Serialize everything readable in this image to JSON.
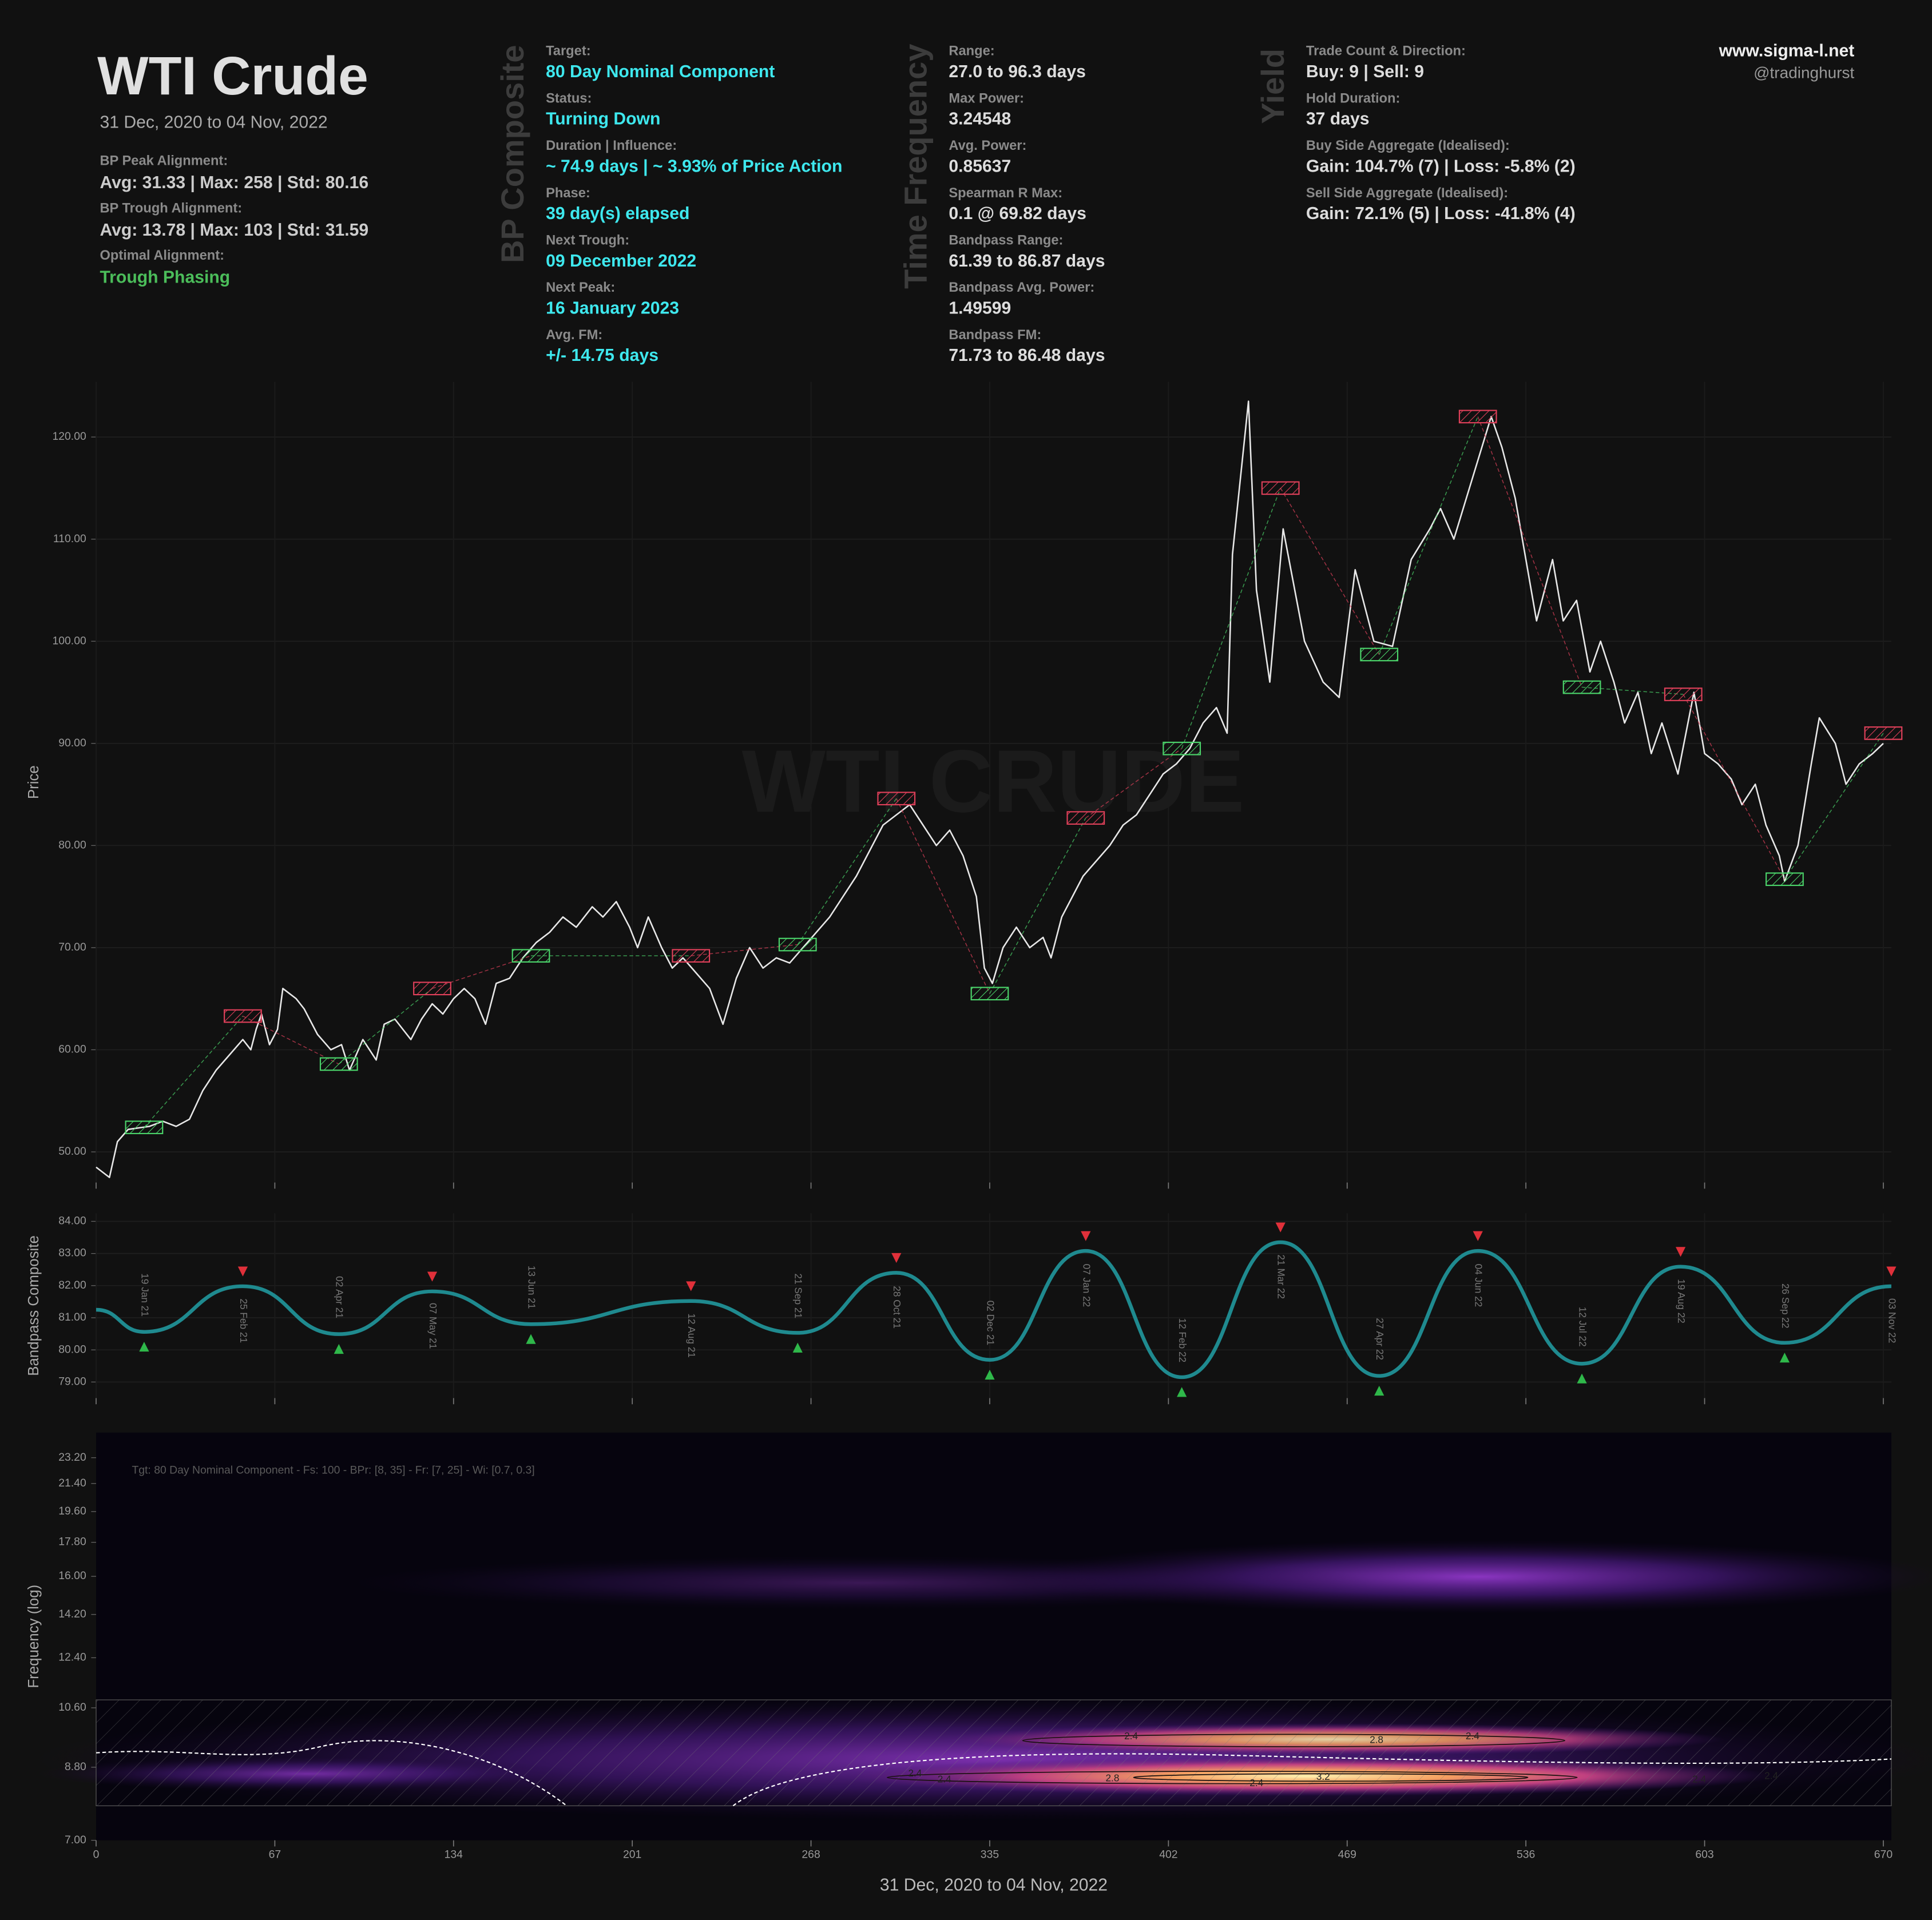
{
  "header": {
    "title": "WTI Crude",
    "subtitle": "31 Dec, 2020 to 04 Nov, 2022",
    "stats": [
      {
        "label": "BP Peak Alignment:",
        "value": "Avg: 31.33 | Max: 258 | Std: 80.16",
        "color": "#cccccc"
      },
      {
        "label": "BP Trough Alignment:",
        "value": "Avg: 13.78 | Max: 103 | Std: 31.59",
        "color": "#cccccc"
      },
      {
        "label": "Optimal Alignment:",
        "value": "Trough Phasing",
        "color": "#4bbd5a"
      }
    ],
    "site": "www.sigma-l.net",
    "handle": "@tradinghurst"
  },
  "panels": [
    {
      "heading": "BP Composite",
      "color": "#3ee8ee",
      "items": [
        {
          "label": "Target:",
          "value": "80 Day Nominal Component"
        },
        {
          "label": "Status:",
          "value": "Turning Down"
        },
        {
          "label": "Duration | Influence:",
          "value": "~ 74.9 days | ~ 3.93% of Price Action"
        },
        {
          "label": "Phase:",
          "value": "39 day(s) elapsed"
        },
        {
          "label": "Next Trough:",
          "value": "09 December 2022"
        },
        {
          "label": "Next Peak:",
          "value": "16 January 2023"
        },
        {
          "label": "Avg. FM:",
          "value": "+/- 14.75 days"
        }
      ]
    },
    {
      "heading": "Time Frequency",
      "color": "#dddddd",
      "items": [
        {
          "label": "Range:",
          "value": "27.0 to 96.3 days"
        },
        {
          "label": "Max Power:",
          "value": "3.24548"
        },
        {
          "label": "Avg. Power:",
          "value": "0.85637"
        },
        {
          "label": "Spearman R Max:",
          "value": "0.1 @ 69.82 days"
        },
        {
          "label": "Bandpass Range:",
          "value": "61.39 to 86.87 days"
        },
        {
          "label": "Bandpass Avg. Power:",
          "value": "1.49599"
        },
        {
          "label": "Bandpass FM:",
          "value": "71.73 to 86.48 days"
        }
      ]
    },
    {
      "heading": "Yield",
      "color": "#dddddd",
      "items": [
        {
          "label": "Trade Count & Direction:",
          "value": "Buy: 9 | Sell: 9"
        },
        {
          "label": "Hold Duration:",
          "value": "37 days"
        },
        {
          "label": "Buy Side Aggregate (Idealised):",
          "value": "Gain: 104.7% (7) | Loss: -5.8% (2)"
        },
        {
          "label": "Sell Side Aggregate (Idealised):",
          "value": "Gain: 72.1% (5) | Loss: -41.8% (4)"
        }
      ]
    }
  ],
  "chart_data": [
    {
      "type": "line",
      "ylabel": "Price",
      "watermark": "WTI CRUDE",
      "color": "#e8e8e8",
      "grid": true,
      "xlim": [
        0,
        673
      ],
      "xticks": [
        0,
        67,
        134,
        201,
        268,
        335,
        402,
        469,
        536,
        603,
        670
      ],
      "ylim": [
        47,
        125.4
      ],
      "yticks": [
        {
          "value": 50,
          "label": "50.00"
        },
        {
          "value": 60,
          "label": "60.00"
        },
        {
          "value": 70,
          "label": "70.00"
        },
        {
          "value": 80,
          "label": "80.00"
        },
        {
          "value": 90,
          "label": "90.00"
        },
        {
          "value": 100,
          "label": "100.00"
        },
        {
          "value": 110,
          "label": "110.00"
        },
        {
          "value": 120,
          "label": "120.00"
        }
      ],
      "x": [
        0,
        5,
        8,
        12,
        20,
        25,
        30,
        35,
        40,
        45,
        50,
        55,
        58,
        60,
        62,
        65,
        68,
        70,
        75,
        78,
        80,
        83,
        88,
        92,
        95,
        100,
        105,
        108,
        112,
        118,
        122,
        126,
        130,
        134,
        138,
        142,
        146,
        150,
        155,
        160,
        165,
        170,
        175,
        180,
        186,
        190,
        195,
        200,
        203,
        207,
        212,
        216,
        220,
        225,
        230,
        235,
        240,
        245,
        250,
        255,
        260,
        265,
        270,
        275,
        280,
        285,
        290,
        295,
        300,
        305,
        310,
        315,
        320,
        325,
        330,
        333,
        336,
        340,
        345,
        350,
        355,
        358,
        362,
        366,
        370,
        375,
        380,
        385,
        390,
        395,
        400,
        405,
        410,
        415,
        420,
        424,
        426,
        432,
        435,
        440,
        445,
        453,
        460,
        466,
        472,
        479,
        486,
        493,
        500,
        504,
        509,
        516,
        523,
        527,
        532,
        536,
        540,
        546,
        550,
        555,
        560,
        564,
        569,
        573,
        578,
        583,
        587,
        593,
        599,
        603,
        608,
        613,
        617,
        622,
        626,
        631,
        633,
        638,
        643,
        646,
        652,
        656,
        661,
        666,
        670
      ],
      "values": [
        48.5,
        47.5,
        51,
        52.2,
        52.5,
        53,
        52.5,
        53.2,
        56,
        58,
        59.5,
        61,
        60,
        62,
        63.5,
        60.5,
        62,
        66,
        65,
        64,
        63,
        61.5,
        60,
        60.5,
        58,
        61,
        59,
        62.5,
        63,
        61,
        63,
        64.5,
        63.5,
        65,
        66,
        65,
        62.5,
        66.5,
        67,
        69,
        70.5,
        71.5,
        73,
        72,
        74,
        73,
        74.5,
        72,
        70,
        73,
        70,
        68,
        69,
        67.5,
        66,
        62.5,
        67,
        70,
        68,
        69,
        68.5,
        70,
        71.5,
        73,
        75,
        77,
        79.5,
        82,
        83,
        84,
        82,
        80,
        81.5,
        79,
        75,
        68,
        66.5,
        70,
        72,
        70,
        71,
        69,
        73,
        75,
        77,
        78.5,
        80,
        82,
        83,
        85,
        87,
        88,
        89.5,
        92,
        93.5,
        91,
        108.5,
        123.5,
        105,
        96,
        111,
        100,
        96,
        94.5,
        107,
        100,
        99.5,
        108,
        111,
        113,
        110,
        116,
        122,
        119,
        114,
        108,
        102,
        108,
        102,
        104,
        97,
        100,
        96,
        92,
        95,
        89,
        92,
        87,
        95,
        89,
        88,
        86.5,
        84,
        86,
        82,
        79,
        76.5,
        80,
        88,
        92.5,
        90,
        86,
        88,
        89,
        90
      ],
      "peaks": {
        "color": "#e0405a",
        "x": [
          55,
          126,
          223,
          300,
          371,
          444,
          518,
          595,
          670
        ],
        "values": [
          63.3,
          66,
          69.2,
          84.6,
          82.7,
          115,
          122,
          94.8,
          91
        ]
      },
      "troughs": {
        "color": "#4bd46a",
        "x": [
          18,
          91,
          163,
          263,
          335,
          407,
          481,
          557,
          633
        ],
        "values": [
          52.4,
          58.6,
          69.2,
          70.3,
          65.5,
          89.5,
          98.7,
          95.5,
          76.7
        ]
      }
    },
    {
      "type": "line",
      "ylabel": "Bandpass Composite",
      "color": "#1f8a8f",
      "grid": true,
      "peak_color": "#e0303a",
      "trough_color": "#2fb84a",
      "xlim": [
        0,
        673
      ],
      "xticks": [
        0,
        67,
        134,
        201,
        268,
        335,
        402,
        469,
        536,
        603,
        670
      ],
      "ylim": [
        78.5,
        84.25
      ],
      "yticks": [
        {
          "value": 79,
          "label": "79.00"
        },
        {
          "value": 80,
          "label": "80.00"
        },
        {
          "value": 81,
          "label": "81.00"
        },
        {
          "value": 82,
          "label": "82.00"
        },
        {
          "value": 83,
          "label": "83.00"
        },
        {
          "value": 84,
          "label": "84.00"
        }
      ],
      "x": [
        0,
        18,
        55,
        91,
        126,
        163,
        223,
        263,
        300,
        335,
        371,
        407,
        444,
        481,
        518,
        557,
        594,
        633,
        673
      ],
      "values": [
        81.25,
        80.56,
        81.98,
        80.49,
        81.82,
        80.8,
        81.52,
        80.53,
        82.4,
        79.69,
        83.08,
        79.15,
        83.35,
        79.19,
        83.08,
        79.57,
        82.59,
        80.22,
        81.98
      ],
      "point_labels": [
        null,
        "19 Jan 21",
        "25 Feb 21",
        "02 Apr 21",
        "07 May 21",
        "13 Jun 21",
        "12 Aug 21",
        "21 Sep 21",
        "28 Oct 21",
        "02 Dec 21",
        "07 Jan 22",
        "12 Feb 22",
        "21 Mar 22",
        "27 Apr 22",
        "04 Jun 22",
        "12 Jul 22",
        "19 Aug 22",
        "26 Sep 22",
        "03 Nov 22"
      ]
    },
    {
      "type": "heatmap",
      "ylabel": "Frequency (log)",
      "xlabel": "31 Dec, 2020 to 04 Nov, 2022",
      "xtick_labels": true,
      "ylog": true,
      "annotation": "Tgt: 80 Day Nominal Component - Fs: 100 - BPr: [8, 35] - Fr: [7, 25] - Wi: [0.7, 0.3]",
      "xlim": [
        0,
        673
      ],
      "xticks": [
        0,
        67,
        134,
        201,
        268,
        335,
        402,
        469,
        536,
        603,
        670
      ],
      "ylim": [
        7,
        25.1
      ],
      "yticks": [
        {
          "value": 7,
          "label": "7.00"
        },
        {
          "value": 8.8,
          "label": "8.80"
        },
        {
          "value": 10.6,
          "label": "10.60"
        },
        {
          "value": 12.4,
          "label": "12.40"
        },
        {
          "value": 14.2,
          "label": "14.20"
        },
        {
          "value": 16,
          "label": "16.00"
        },
        {
          "value": 17.8,
          "label": "17.80"
        },
        {
          "value": 19.6,
          "label": "19.60"
        },
        {
          "value": 21.4,
          "label": "21.40"
        },
        {
          "value": 23.2,
          "label": "23.20"
        }
      ],
      "contour_labels": {
        "x": [
          388,
          480,
          516,
          307,
          318,
          381,
          435,
          460,
          601,
          628
        ],
        "y": [
          9.68,
          9.57,
          9.68,
          8.62,
          8.46,
          8.49,
          8.36,
          8.53,
          8.46,
          8.55
        ],
        "values": [
          2.4,
          2.8,
          2.4,
          2.4,
          2.4,
          2.8,
          2.4,
          3.2,
          2.4,
          2.4
        ]
      }
    }
  ]
}
